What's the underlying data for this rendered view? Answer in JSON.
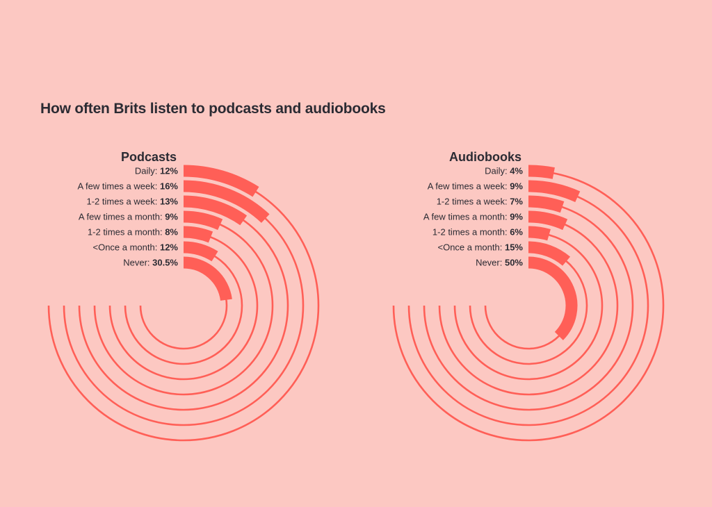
{
  "title": "How often Brits listen to podcasts and audiobooks",
  "colors": {
    "background": "#fcc8c2",
    "accent": "#ff5f57",
    "text": "#2b2b33"
  },
  "chart_data": [
    {
      "type": "radial-bar",
      "title": "Podcasts",
      "unit": "%",
      "categories": [
        "Daily",
        "A few times a week",
        "1-2 times a week",
        "A few times a month",
        "1-2 times a month",
        "<Once a month",
        "Never"
      ],
      "values": [
        12,
        16,
        13,
        9,
        8,
        12,
        30.5
      ],
      "value_labels": [
        "12%",
        "16%",
        "13%",
        "9%",
        "8%",
        "12%",
        "30.5%"
      ],
      "track_range": [
        0,
        100
      ]
    },
    {
      "type": "radial-bar",
      "title": "Audiobooks",
      "unit": "%",
      "categories": [
        "Daily",
        "A few times a week",
        "1-2 times a week",
        "A few times a month",
        "1-2 times a month",
        "<Once a month",
        "Never"
      ],
      "values": [
        4,
        9,
        7,
        9,
        6,
        15,
        50
      ],
      "value_labels": [
        "4%",
        "9%",
        "7%",
        "9%",
        "6%",
        "15%",
        "50%"
      ],
      "track_range": [
        0,
        100
      ]
    }
  ]
}
